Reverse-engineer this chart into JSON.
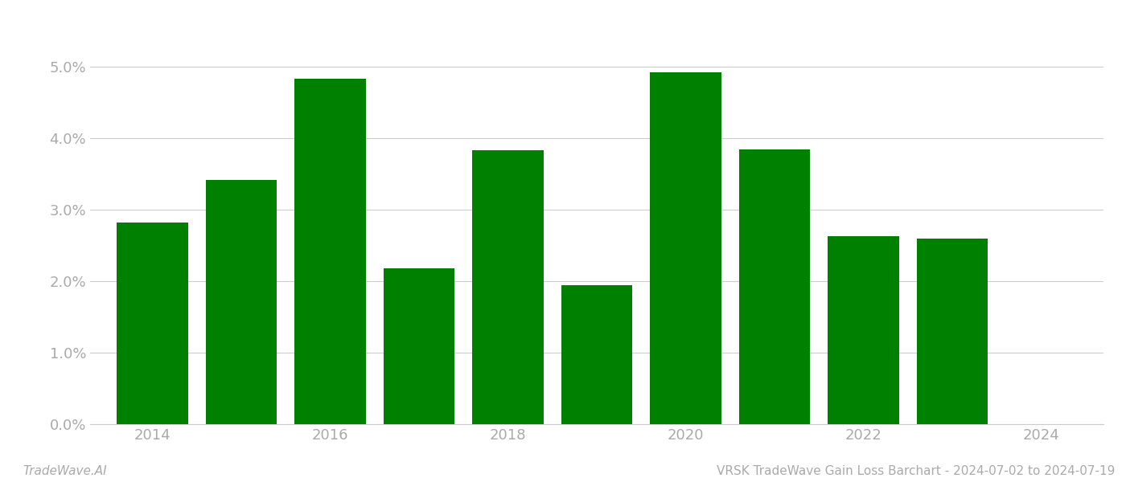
{
  "years": [
    2014,
    2015,
    2016,
    2017,
    2018,
    2019,
    2020,
    2021,
    2022,
    2023
  ],
  "values": [
    0.0282,
    0.0342,
    0.0483,
    0.0218,
    0.0383,
    0.0195,
    0.0493,
    0.0385,
    0.0263,
    0.026
  ],
  "bar_color": "#008000",
  "ylim": [
    0,
    0.056
  ],
  "yticks": [
    0.0,
    0.01,
    0.02,
    0.03,
    0.04,
    0.05
  ],
  "xlim": [
    2013.3,
    2024.7
  ],
  "xticks": [
    2014,
    2016,
    2018,
    2020,
    2022,
    2024
  ],
  "bar_width": 0.8,
  "background_color": "#ffffff",
  "grid_color": "#cccccc",
  "footer_left": "TradeWave.AI",
  "footer_right": "VRSK TradeWave Gain Loss Barchart - 2024-07-02 to 2024-07-19",
  "footer_color": "#aaaaaa",
  "tick_label_color": "#aaaaaa",
  "axis_font_size": 13,
  "footer_font_size": 11
}
